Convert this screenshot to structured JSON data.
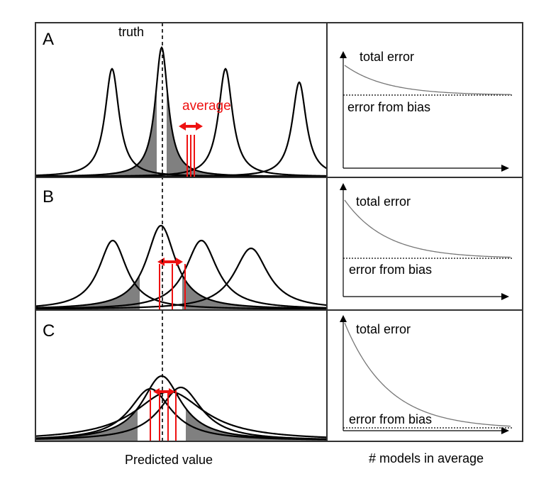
{
  "figure": {
    "truth_label": "truth",
    "average_label": "average",
    "x_caption_left": "Predicted value",
    "x_caption_right": "# models in average",
    "colors": {
      "line": "#000000",
      "accent": "#ee1111",
      "shade": "#808080",
      "curve": "#777777"
    }
  },
  "panels": [
    {
      "letter": "A",
      "total_label": "total error",
      "bias_label": "error from bias"
    },
    {
      "letter": "B",
      "total_label": "total error",
      "bias_label": "error from bias"
    },
    {
      "letter": "C",
      "total_label": "total error",
      "bias_label": "error from bias"
    }
  ]
}
